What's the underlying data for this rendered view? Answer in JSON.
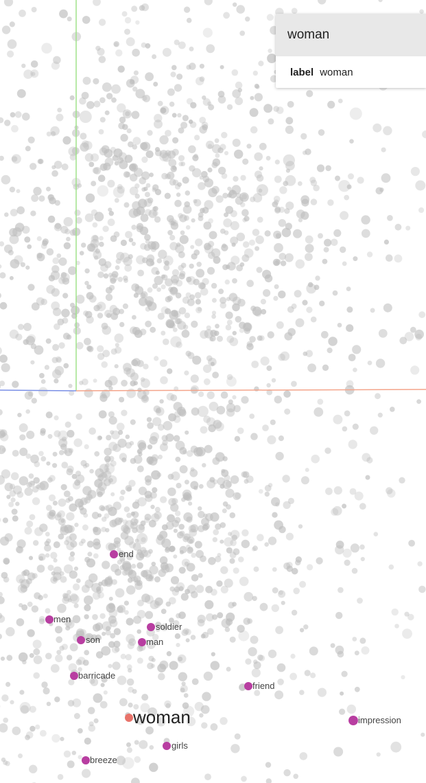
{
  "tooltip": {
    "title": "woman",
    "field_key": "label",
    "field_value": "woman"
  },
  "colors": {
    "background_point": "#c8c8c8",
    "neighbor_point": "#b83ea1",
    "selected_point": "#e8736a",
    "axis_x": "#f4a48a",
    "axis_y": "#9fe28a",
    "axis_z": "#7a8fe6"
  },
  "labels": {
    "selected": "woman",
    "neighbors": [
      "end",
      "men",
      "soldier",
      "son",
      "man",
      "barricade",
      "friend",
      "impression",
      "girls",
      "breeze"
    ]
  }
}
